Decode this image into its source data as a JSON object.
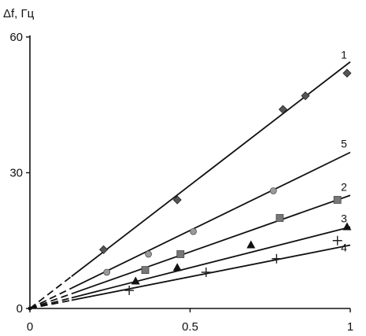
{
  "chart_data": {
    "type": "scatter",
    "title": "",
    "xlabel": "",
    "ylabel": "Δf, Гц",
    "xlim": [
      0,
      1
    ],
    "ylim": [
      0,
      60
    ],
    "x_ticks": [
      "0",
      "0.5",
      "1"
    ],
    "y_ticks": [
      "0",
      "30",
      "60"
    ],
    "grid": false,
    "legend": "none",
    "series": [
      {
        "name": "1",
        "marker": "diamond",
        "points": [
          [
            0.23,
            13
          ],
          [
            0.46,
            24
          ],
          [
            0.79,
            44
          ],
          [
            0.86,
            47
          ],
          [
            0.99,
            52
          ]
        ],
        "fit_slope": 54.5
      },
      {
        "name": "5",
        "marker": "circle",
        "points": [
          [
            0.24,
            8
          ],
          [
            0.37,
            12
          ],
          [
            0.51,
            17
          ],
          [
            0.76,
            26
          ]
        ],
        "fit_slope": 34.5
      },
      {
        "name": "2",
        "marker": "square",
        "points": [
          [
            0.36,
            8.5
          ],
          [
            0.47,
            12
          ],
          [
            0.78,
            20
          ],
          [
            0.96,
            24
          ]
        ],
        "fit_slope": 25
      },
      {
        "name": "3",
        "marker": "triangle",
        "points": [
          [
            0.33,
            6
          ],
          [
            0.46,
            9
          ],
          [
            0.69,
            14
          ],
          [
            0.99,
            18
          ]
        ],
        "fit_slope": 18
      },
      {
        "name": "4",
        "marker": "plus",
        "points": [
          [
            0.31,
            4
          ],
          [
            0.55,
            8
          ],
          [
            0.77,
            11
          ],
          [
            0.96,
            15
          ]
        ],
        "fit_slope": 14
      }
    ]
  }
}
